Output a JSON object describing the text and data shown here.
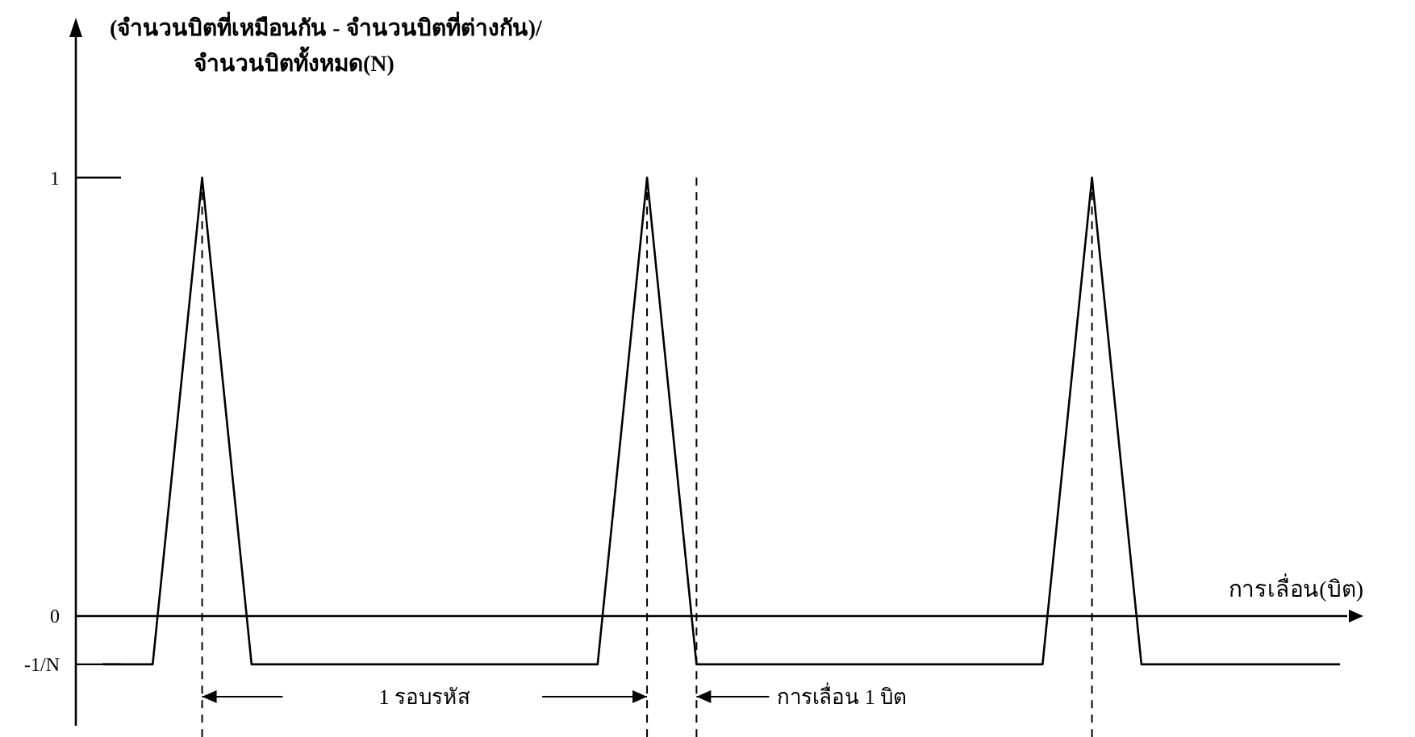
{
  "chart_data": {
    "type": "line",
    "ylabel": "(จำนวนบิตที่เหมือนกัน - จำนวนบิตที่ต่างกัน)/\nจำนวนบิตทั้งหมด(N)",
    "xlabel": "การเลื่อน(บิต)",
    "categories": [
      null,
      null,
      null,
      null,
      null,
      null,
      null,
      null,
      null,
      null,
      null,
      null,
      null,
      null,
      null,
      null,
      null,
      null,
      null,
      null,
      null,
      null,
      null,
      null,
      null,
      null
    ],
    "series": [
      {
        "color": "#000000",
        "values": [
          -0.11,
          -0.11,
          1,
          -0.11,
          -0.11,
          -0.11,
          -0.11,
          -0.11,
          -0.11,
          -0.11,
          -0.11,
          1,
          -0.11,
          -0.11,
          -0.11,
          -0.11,
          -0.11,
          -0.11,
          -0.11,
          -0.11,
          1,
          -0.11,
          -0.11,
          -0.11,
          -0.11,
          -0.11
        ]
      }
    ],
    "ylim": [
      -0.25,
      1.35
    ],
    "yticks": [
      1,
      0
    ],
    "tick_labels": "y",
    "grid": "x",
    "marker": "none",
    "line_style": "solid",
    "ref_lines": [
      {
        "axis": "y",
        "value": -0.11,
        "label": "-1/N"
      }
    ],
    "annotations": [
      "1 รอบรหัส",
      "การเลื่อน 1 บิต"
    ]
  }
}
